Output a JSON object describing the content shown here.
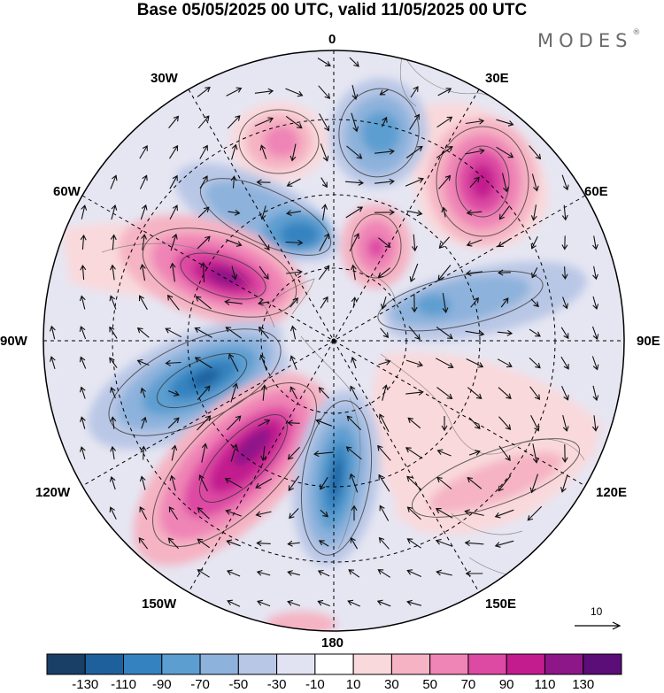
{
  "title": "Base 05/05/2025 00 UTC, valid 11/05/2025 00 UTC",
  "brand": {
    "name": "MODES",
    "mark": "®"
  },
  "map": {
    "projection": "polar-stereographic",
    "longitude_labels": {
      "top": "0",
      "top_left": "30W",
      "top_right": "30E",
      "upper_left": "60W",
      "upper_right": "60E",
      "left": "90W",
      "right": "90E",
      "lower_left": "120W",
      "lower_right": "120E",
      "bottom_left": "150W",
      "bottom_right": "150E",
      "bottom": "180"
    },
    "reference_vector": {
      "label": "10"
    }
  },
  "colorbar": {
    "colors": [
      "#1a3f66",
      "#1e609c",
      "#3483c0",
      "#5d9ed0",
      "#8db2dc",
      "#b9c7e6",
      "#e2e3f2",
      "#ffffff",
      "#f9d9dc",
      "#f5b3c3",
      "#ef84b6",
      "#dd4aa3",
      "#c21c8f",
      "#8d1689",
      "#5b0d78"
    ],
    "labels": [
      "-130",
      "-110",
      "-90",
      "-70",
      "-50",
      "-30",
      "-10",
      "10",
      "30",
      "50",
      "70",
      "90",
      "110",
      "130"
    ]
  }
}
